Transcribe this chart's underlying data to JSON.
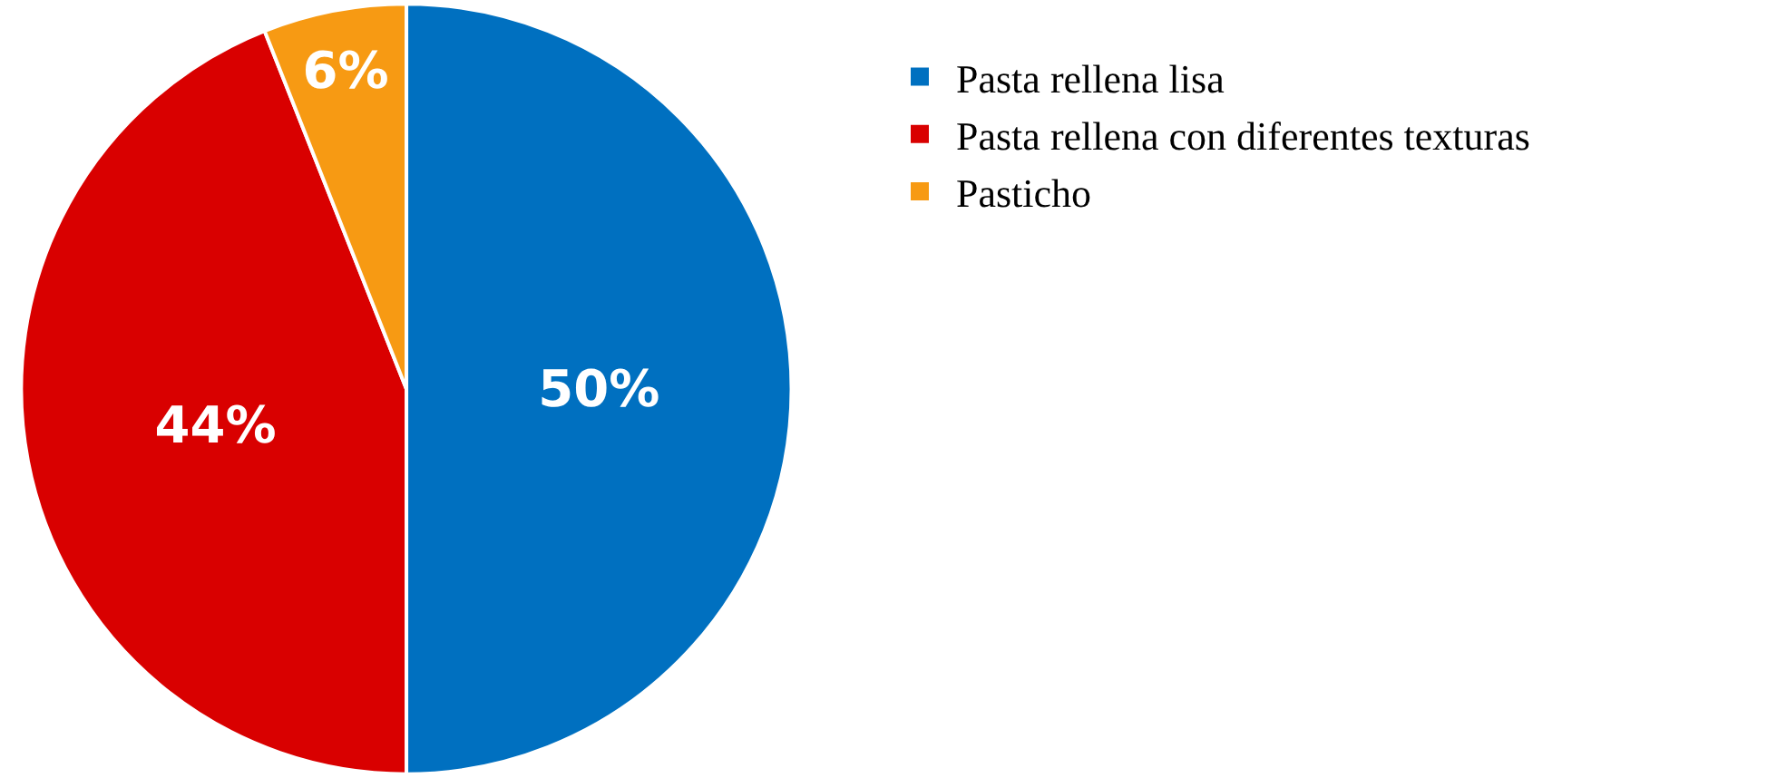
{
  "chart_data": {
    "type": "pie",
    "categories": [
      "Pasta rellena lisa",
      "Pasta rellena con diferentes texturas",
      "Pasticho"
    ],
    "values": [
      50,
      44,
      6
    ],
    "colors": [
      "#0070c0",
      "#d90000",
      "#f79a13"
    ],
    "value_labels": [
      "50%",
      "44%",
      "6%"
    ],
    "legend": "right"
  }
}
